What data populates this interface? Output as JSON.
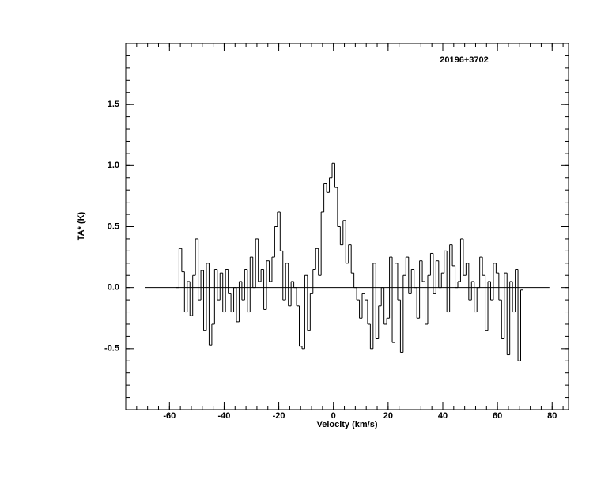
{
  "chart_data": {
    "type": "step",
    "annotation": "20196+3702",
    "xlabel": "Velocity (km/s)",
    "ylabel": "TA* (K)",
    "xlim": [
      -76,
      86
    ],
    "ylim": [
      -1,
      2
    ],
    "xticks": [
      -60,
      -40,
      -20,
      0,
      20,
      40,
      60,
      80
    ],
    "yticks": [
      {
        "value": -0.5,
        "label": "-0.5"
      },
      {
        "value": 0,
        "label": "0.0"
      },
      {
        "value": 0.5,
        "label": "0.5"
      },
      {
        "value": 1,
        "label": "1.0"
      },
      {
        "value": 1.5,
        "label": "1.5"
      }
    ],
    "x_minor": 4,
    "y_minor": 5,
    "color": "#000000",
    "baseline": {
      "value": 0,
      "xrange": [
        -69,
        79
      ]
    },
    "x": [
      -57,
      -56,
      -55,
      -54,
      -53,
      -52,
      -51,
      -50,
      -49,
      -48,
      -47,
      -46,
      -45,
      -44,
      -43,
      -42,
      -41,
      -40,
      -39,
      -38,
      -37,
      -36,
      -35,
      -34,
      -33,
      -32,
      -31,
      -30,
      -29,
      -28,
      -27,
      -26,
      -25,
      -24,
      -23,
      -22,
      -21,
      -20,
      -19,
      -18,
      -17,
      -16,
      -15,
      -14,
      -13,
      -12,
      -11,
      -10,
      -9,
      -8,
      -7,
      -6,
      -5,
      -4,
      -3,
      -2,
      -1,
      0,
      1,
      2,
      3,
      4,
      5,
      6,
      7,
      8,
      9,
      10,
      11,
      12,
      13,
      14,
      15,
      16,
      17,
      18,
      19,
      20,
      21,
      22,
      23,
      24,
      25,
      26,
      27,
      28,
      29,
      30,
      31,
      32,
      33,
      34,
      35,
      36,
      37,
      38,
      39,
      40,
      41,
      42,
      43,
      44,
      45,
      46,
      47,
      48,
      49,
      50,
      51,
      52,
      53,
      54,
      55,
      56,
      57,
      58,
      59,
      60,
      61,
      62,
      63,
      64,
      65,
      66,
      67,
      68,
      69
    ],
    "values": [
      0.0,
      0.32,
      0.13,
      -0.2,
      0.05,
      -0.23,
      0.1,
      0.4,
      -0.1,
      0.14,
      -0.35,
      0.2,
      -0.47,
      -0.3,
      0.15,
      -0.1,
      0.12,
      -0.2,
      0.15,
      -0.05,
      -0.2,
      0.0,
      -0.28,
      0.05,
      -0.1,
      0.15,
      -0.2,
      0.25,
      0.0,
      0.4,
      0.05,
      0.15,
      -0.18,
      0.22,
      0.05,
      0.25,
      0.5,
      0.62,
      0.3,
      -0.1,
      0.2,
      -0.15,
      0.05,
      0.0,
      -0.15,
      -0.48,
      -0.5,
      0.1,
      -0.35,
      -0.05,
      0.15,
      0.32,
      0.1,
      0.62,
      0.85,
      0.78,
      0.9,
      1.02,
      0.82,
      0.5,
      0.35,
      0.55,
      0.2,
      0.35,
      0.12,
      0.0,
      -0.1,
      -0.25,
      -0.05,
      -0.1,
      -0.3,
      -0.5,
      0.2,
      -0.42,
      -0.15,
      0.0,
      -0.3,
      -0.25,
      0.25,
      -0.45,
      0.2,
      -0.1,
      -0.53,
      0.1,
      0.25,
      -0.05,
      0.15,
      0.0,
      -0.25,
      0.22,
      0.05,
      -0.3,
      0.1,
      0.28,
      -0.05,
      0.22,
      0.0,
      0.12,
      0.3,
      -0.2,
      0.35,
      0.18,
      0.0,
      0.05,
      0.4,
      0.1,
      0.2,
      -0.1,
      0.05,
      -0.2,
      0.0,
      0.25,
      0.1,
      -0.35,
      0.05,
      -0.1,
      0.2,
      0.12,
      -0.1,
      -0.42,
      0.12,
      -0.55,
      0.05,
      -0.2,
      0.15,
      -0.6,
      -0.02
    ]
  }
}
